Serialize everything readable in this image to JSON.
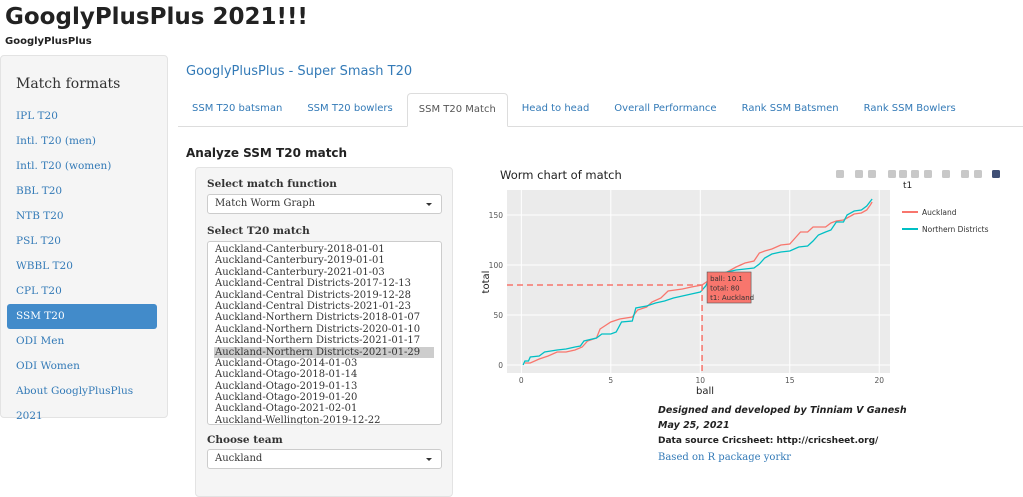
{
  "app": {
    "title": "GooglyPlusPlus 2021!!!",
    "subtitle": "GooglyPlusPlus"
  },
  "sidebar": {
    "heading": "Match formats",
    "items": [
      "IPL T20",
      "Intl. T20 (men)",
      "Intl. T20 (women)",
      "BBL T20",
      "NTB T20",
      "PSL T20",
      "WBBL T20",
      "CPL T20",
      "SSM T20",
      "ODI Men",
      "ODI Women",
      "About GooglyPlusPlus 2021"
    ],
    "active_index": 8
  },
  "main": {
    "title": "GooglyPlusPlus - Super Smash T20",
    "tabs": [
      "SSM T20 batsman",
      "SSM T20 bowlers",
      "SSM T20 Match",
      "Head to head",
      "Overall Performance",
      "Rank SSM Batsmen",
      "Rank SSM Bowlers"
    ],
    "active_tab": 2,
    "section_title": "Analyze SSM T20 match"
  },
  "controls": {
    "function_label": "Select match function",
    "function_value": "Match Worm Graph",
    "match_label": "Select T20 match",
    "matches": [
      "Auckland-Canterbury-2018-01-01",
      "Auckland-Canterbury-2019-01-01",
      "Auckland-Canterbury-2021-01-03",
      "Auckland-Central Districts-2017-12-13",
      "Auckland-Central Districts-2019-12-28",
      "Auckland-Central Districts-2021-01-23",
      "Auckland-Northern Districts-2018-01-07",
      "Auckland-Northern Districts-2020-01-10",
      "Auckland-Northern Districts-2021-01-17",
      "Auckland-Northern Districts-2021-01-29",
      "Auckland-Otago-2014-01-03",
      "Auckland-Otago-2018-01-14",
      "Auckland-Otago-2019-01-13",
      "Auckland-Otago-2019-01-20",
      "Auckland-Otago-2021-02-01",
      "Auckland-Wellington-2019-12-22"
    ],
    "selected_match_index": 9,
    "team_label": "Choose team",
    "team_value": "Auckland"
  },
  "footer": {
    "credit": "Designed and developed by Tinniam V Ganesh",
    "date": "May 25, 2021",
    "source": "Data source Cricsheet: http://cricsheet.org/",
    "package": "Based on R package yorkr"
  },
  "chart_data": {
    "type": "line",
    "title": "Worm chart of match",
    "xlabel": "ball",
    "ylabel": "total",
    "xlim": [
      -0.8,
      20.6
    ],
    "ylim": [
      -8,
      175
    ],
    "xticks": [
      0,
      5,
      10,
      15,
      20
    ],
    "yticks": [
      0,
      50,
      100,
      150
    ],
    "legend_title": "t1",
    "legend_position": "right",
    "series": [
      {
        "name": "Auckland",
        "color": "#F8766D",
        "x": [
          0.2,
          0.5,
          1,
          1.5,
          2,
          2.5,
          3,
          3.4,
          3.7,
          4.2,
          4.4,
          5,
          5.5,
          6.2,
          6.5,
          7,
          7.3,
          7.8,
          8.2,
          9,
          9.5,
          10.1,
          10.5,
          11,
          11.5,
          12,
          12.5,
          13,
          13.3,
          13.6,
          14,
          14.5,
          15,
          15.3,
          15.6,
          16,
          16.3,
          17,
          17.3,
          17.6,
          18,
          18.3,
          18.6,
          19,
          19.3,
          19.5,
          19.6
        ],
        "y": [
          2,
          2,
          6,
          9,
          13,
          13,
          15,
          18,
          24,
          27,
          36,
          43,
          46,
          48,
          55,
          58,
          63,
          67,
          74,
          76,
          78,
          80,
          85,
          90,
          93,
          98,
          102,
          104,
          112,
          114,
          116,
          120,
          121,
          127,
          133,
          133,
          138,
          138,
          142,
          144,
          145,
          148,
          151,
          152,
          155,
          160,
          163
        ]
      },
      {
        "name": "Northern Districts",
        "color": "#00BFC4",
        "x": [
          0.1,
          0.2,
          0.4,
          0.5,
          1,
          1.3,
          2,
          2.5,
          3,
          3.3,
          3.5,
          4.2,
          4.5,
          5,
          5.3,
          5.6,
          6.2,
          6.4,
          7,
          7.5,
          8,
          8.5,
          9,
          9.5,
          10,
          10.3,
          10.5,
          11,
          11.5,
          12,
          12.5,
          13,
          13.3,
          13.6,
          14,
          14.5,
          15,
          15.5,
          16,
          16.3,
          16.6,
          17,
          17.3,
          17.6,
          18,
          18.2,
          18.6,
          19,
          19.3,
          19.6
        ],
        "y": [
          0,
          4,
          4,
          8,
          9,
          13,
          15,
          16,
          18,
          19,
          24,
          27,
          31,
          31,
          33,
          43,
          44,
          57,
          59,
          62,
          64,
          67,
          69,
          71,
          73,
          79,
          86,
          90,
          93,
          95,
          96,
          97,
          101,
          107,
          111,
          113,
          114,
          118,
          119,
          124,
          130,
          133,
          135,
          143,
          143,
          150,
          154,
          155,
          159,
          166
        ]
      }
    ],
    "tooltip": {
      "ball_label": "ball: 10.1",
      "total_label": "total:  80",
      "team_label": "t1: Auckland",
      "x": 10.1,
      "y": 80
    }
  }
}
